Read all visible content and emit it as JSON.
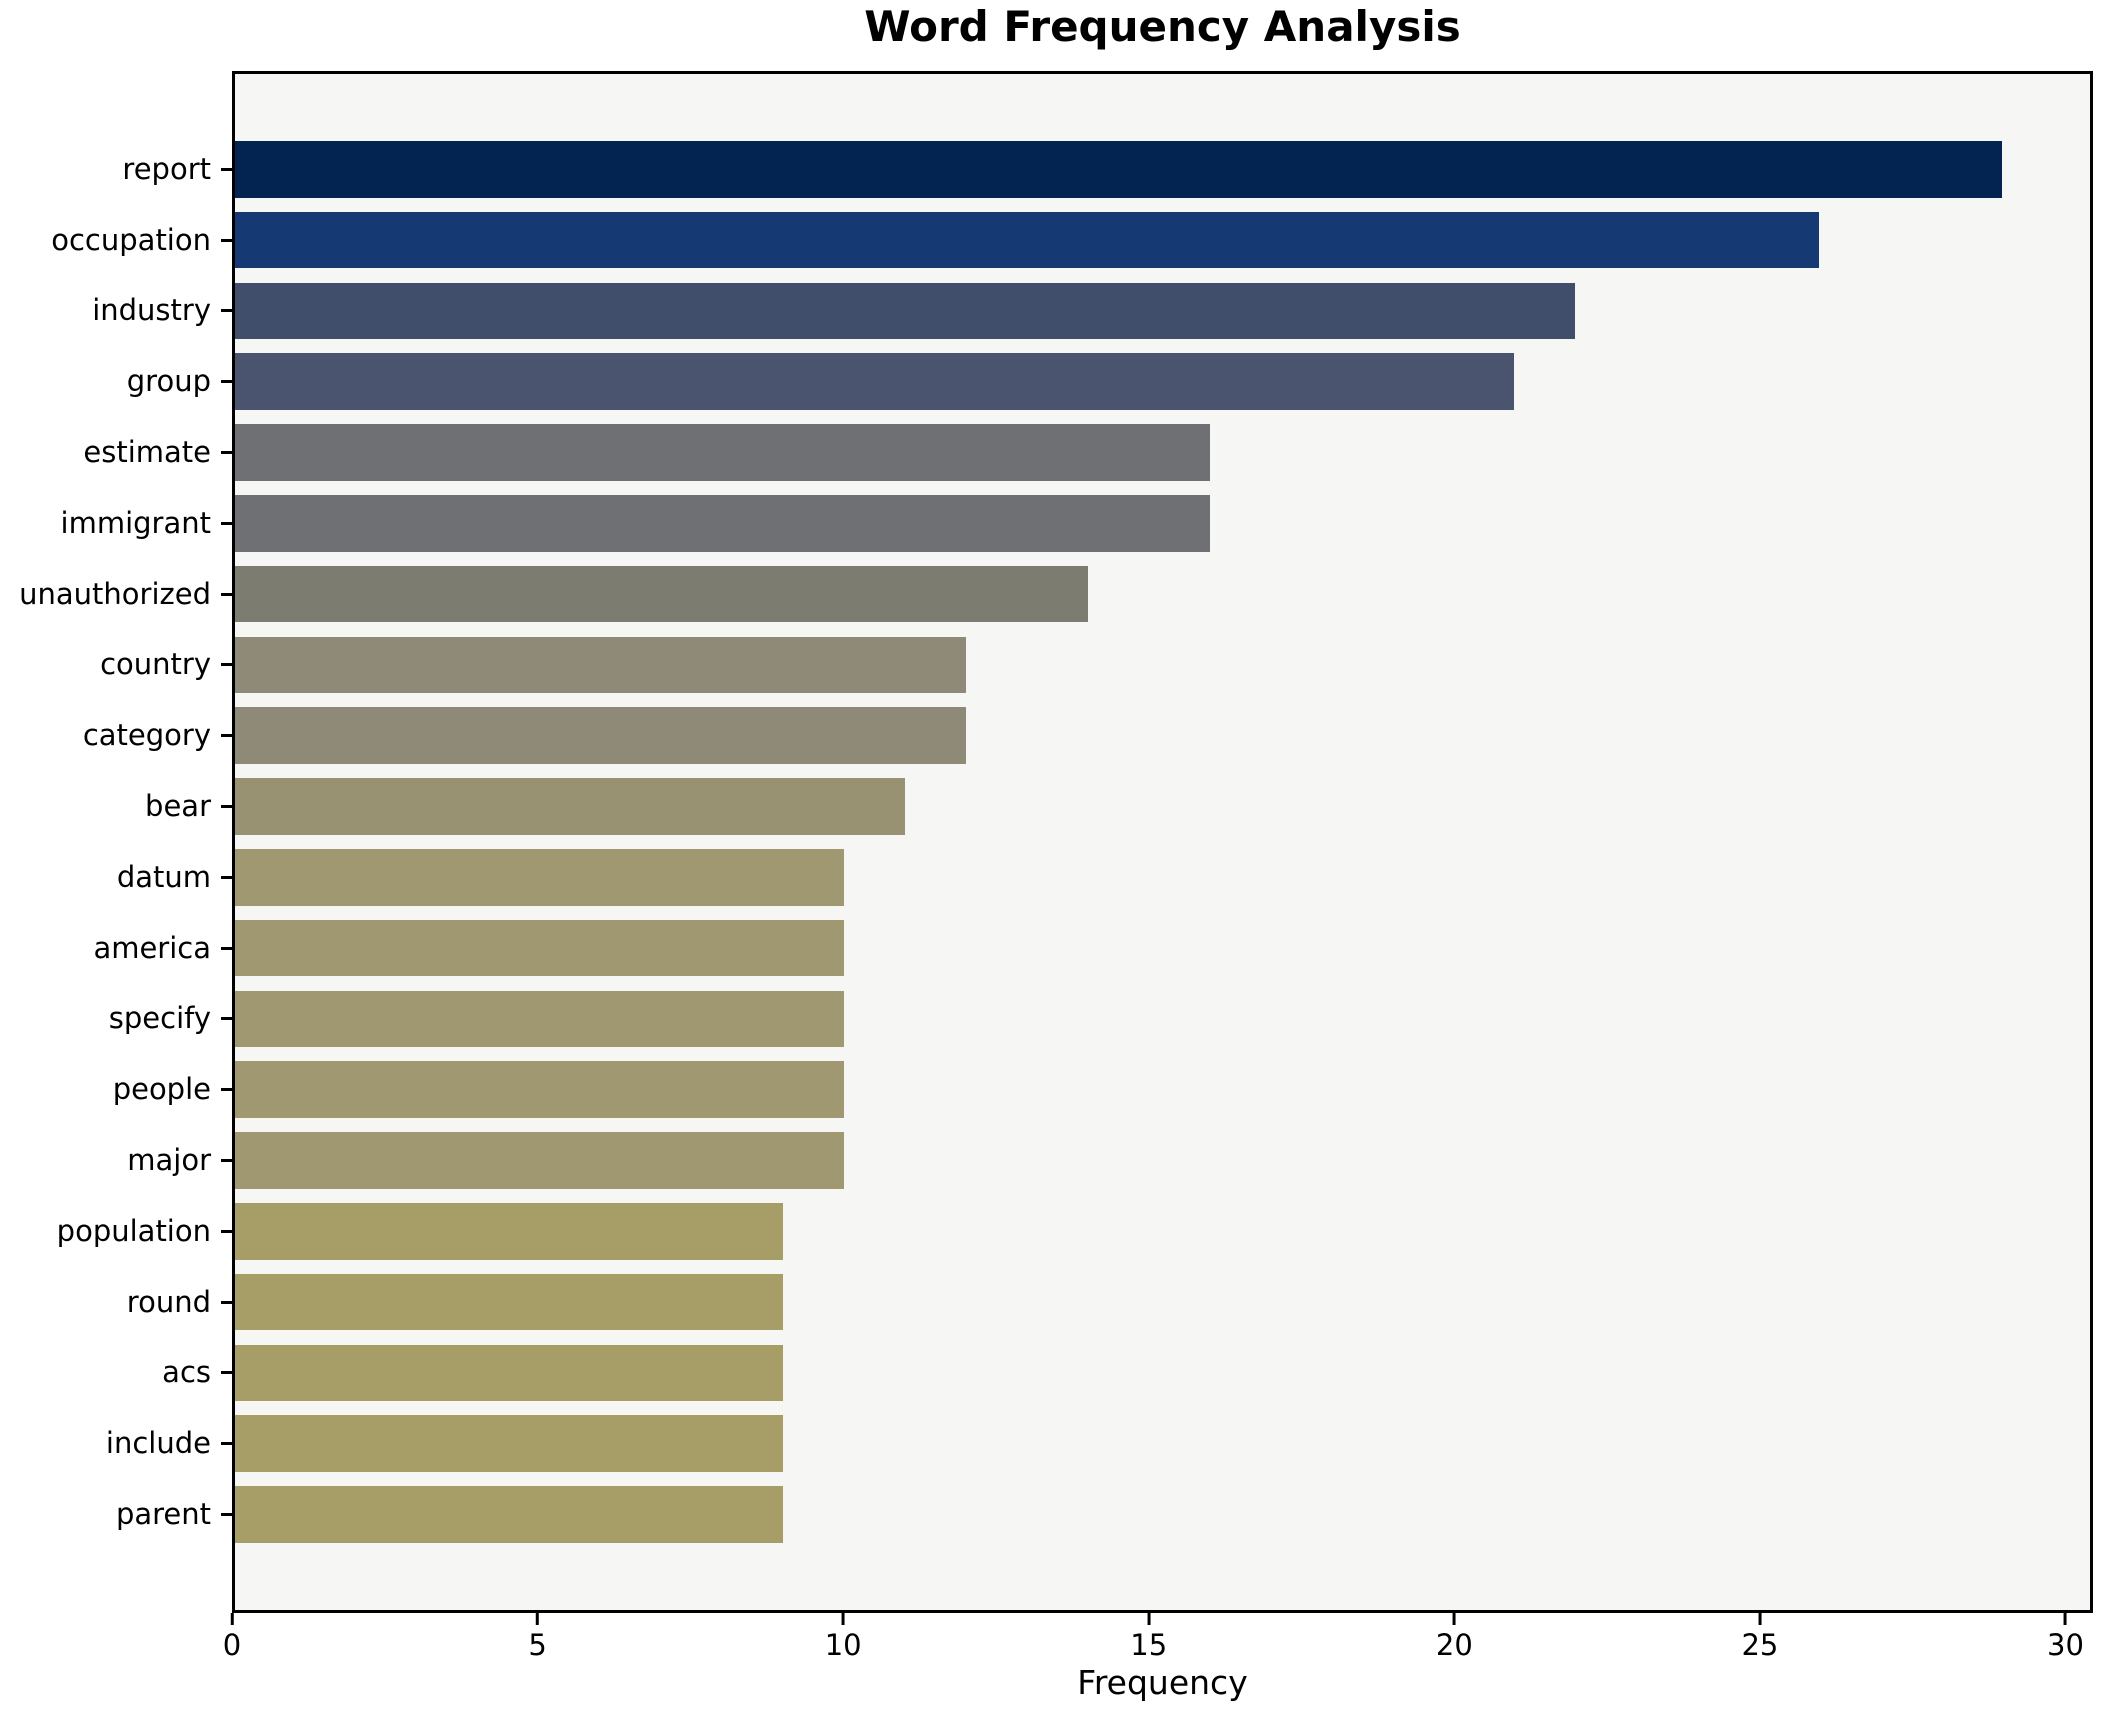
{
  "chart_data": {
    "type": "bar",
    "orientation": "horizontal",
    "title": "Word Frequency Analysis",
    "xlabel": "Frequency",
    "ylabel": "",
    "categories": [
      "report",
      "occupation",
      "industry",
      "group",
      "estimate",
      "immigrant",
      "unauthorized",
      "country",
      "category",
      "bear",
      "datum",
      "america",
      "specify",
      "people",
      "major",
      "population",
      "round",
      "acs",
      "include",
      "parent"
    ],
    "values": [
      29,
      26,
      22,
      21,
      16,
      16,
      14,
      12,
      12,
      11,
      10,
      10,
      10,
      10,
      10,
      9,
      9,
      9,
      9,
      9
    ],
    "bar_colors": [
      "#032450",
      "#143973",
      "#404d6b",
      "#4a546e",
      "#6e7074",
      "#6e7074",
      "#7d7c71",
      "#8f8977",
      "#8f8977",
      "#989172",
      "#a09870",
      "#a09870",
      "#a09870",
      "#a09870",
      "#a09870",
      "#a79d67",
      "#a79d67",
      "#a79d67",
      "#a79d67",
      "#a79d67"
    ],
    "xticks": [
      0,
      5,
      10,
      15,
      20,
      25,
      30
    ],
    "xlim": [
      0,
      30.45
    ],
    "grid": false,
    "legend": false,
    "colormap": "cividis-reversed",
    "plot_background": "#f6f6f5",
    "figure_background": "#ffffff",
    "spine_color": "#000000",
    "text_color": "#000000"
  }
}
